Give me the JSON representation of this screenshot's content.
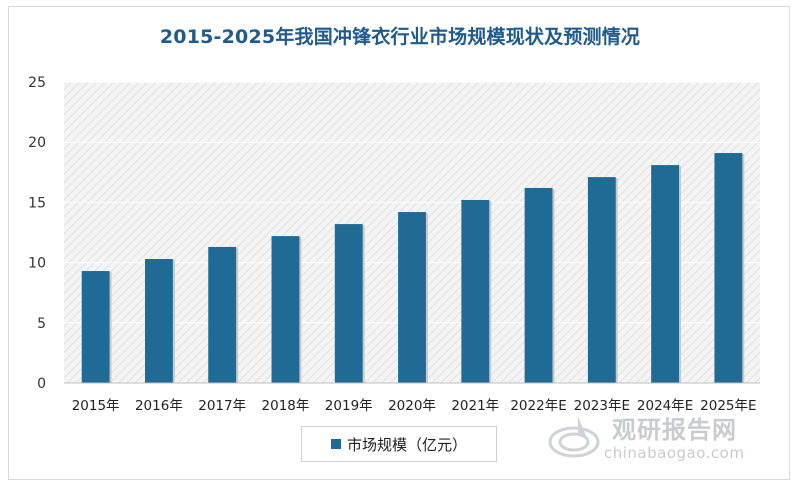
{
  "chart_data": {
    "type": "bar",
    "title": "2015-2025年我国冲锋衣行业市场规模现状及预测情况",
    "categories": [
      "2015年",
      "2016年",
      "2017年",
      "2018年",
      "2019年",
      "2020年",
      "2021年",
      "2022年E",
      "2023年E",
      "2024年E",
      "2025年E"
    ],
    "series": [
      {
        "name": "市场规模（亿元）",
        "values": [
          9.3,
          10.3,
          11.3,
          12.2,
          13.2,
          14.2,
          15.2,
          16.2,
          17.1,
          18.1,
          19.1
        ]
      }
    ],
    "ylim": [
      0,
      25
    ],
    "yticks": [
      0,
      5,
      10,
      15,
      20,
      25
    ],
    "xlabel": "",
    "ylabel": "",
    "legend_position": "bottom",
    "bar_color": "#1f6b96",
    "title_color": "#1e5a8c"
  },
  "watermark": {
    "cn": "观研报告网",
    "url": "chinabaogao.com"
  }
}
